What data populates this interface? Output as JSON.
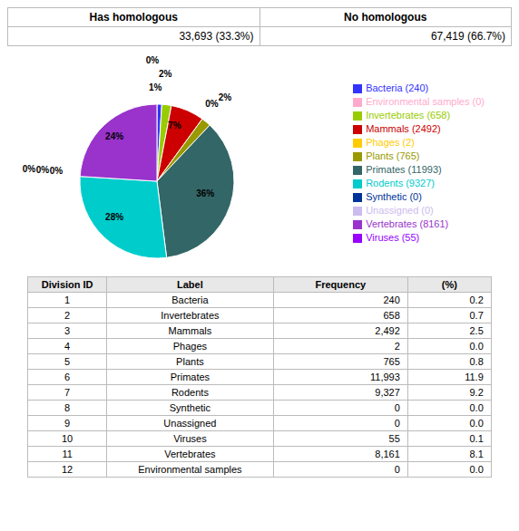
{
  "chart_data": [
    {
      "type": "table",
      "headers": [
        "Has homologous",
        "No homologous"
      ],
      "rows": [
        [
          "33,693 (33.3%)",
          "67,419 (66.7%)"
        ]
      ]
    },
    {
      "type": "pie",
      "categories": [
        "Bacteria (240)",
        "Invertebrates (658)",
        "Mammals (2492)",
        "Phages (2)",
        "Plants (765)",
        "Primates (11993)",
        "Rodents (9327)",
        "Synthetic (0)",
        "Unassigned (0)",
        "Viruses (55)",
        "Vertebrates (8161)",
        "Environmental samples (0)"
      ],
      "values": [
        1,
        2,
        7,
        0,
        2,
        36,
        28,
        0,
        0,
        0,
        24,
        0
      ],
      "value_labels": [
        "1%",
        "2%",
        "7%",
        "0%",
        "2%",
        "36%",
        "28%",
        "0%",
        "0%",
        "0%",
        "24%",
        "0%"
      ],
      "colors": [
        "#3333ff",
        "#99cc00",
        "#cc0000",
        "#ffcc00",
        "#999900",
        "#336666",
        "#00cccc",
        "#003399",
        "#ccbbee",
        "#9900ff",
        "#9933cc",
        "#ffaacc"
      ],
      "data_labels": true,
      "legend": "right"
    },
    {
      "type": "table",
      "headers": [
        "Division ID",
        "Label",
        "Frequency",
        "(%)"
      ],
      "rows": [
        [
          1,
          "Bacteria",
          "240",
          "0.2"
        ],
        [
          2,
          "Invertebrates",
          "658",
          "0.7"
        ],
        [
          3,
          "Mammals",
          "2,492",
          "2.5"
        ],
        [
          4,
          "Phages",
          "2",
          "0.0"
        ],
        [
          5,
          "Plants",
          "765",
          "0.8"
        ],
        [
          6,
          "Primates",
          "11,993",
          "11.9"
        ],
        [
          7,
          "Rodents",
          "9,327",
          "9.2"
        ],
        [
          8,
          "Synthetic",
          "0",
          "0.0"
        ],
        [
          9,
          "Unassigned",
          "0",
          "0.0"
        ],
        [
          10,
          "Viruses",
          "55",
          "0.1"
        ],
        [
          11,
          "Vertebrates",
          "8,161",
          "8.1"
        ],
        [
          12,
          "Environmental samples",
          "0",
          "0.0"
        ]
      ]
    }
  ]
}
